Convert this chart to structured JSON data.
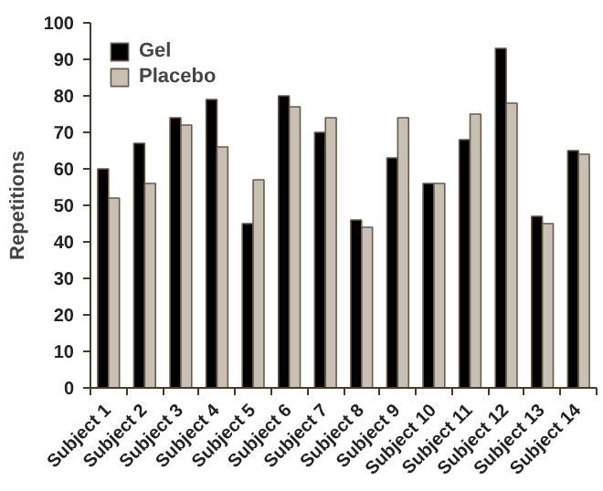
{
  "chart_data": {
    "type": "bar",
    "ylabel": "Repetitions",
    "categories": [
      "Subject 1",
      "Subject 2",
      "Subject 3",
      "Subject 4",
      "Subject 5",
      "Subject 6",
      "Subject 7",
      "Subject 8",
      "Subject 9",
      "Subject 10",
      "Subject 11",
      "Subject 12",
      "Subject 13",
      "Subject 14"
    ],
    "series": [
      {
        "name": "Gel",
        "color": "#000000",
        "values": [
          60,
          67,
          74,
          79,
          45,
          80,
          70,
          46,
          63,
          56,
          68,
          93,
          47,
          65
        ]
      },
      {
        "name": "Placebo",
        "color": "#c8bfb5",
        "values": [
          52,
          56,
          72,
          66,
          57,
          77,
          74,
          44,
          74,
          56,
          75,
          78,
          45,
          64
        ]
      }
    ],
    "ylim": [
      0,
      100
    ],
    "yticks": [
      0,
      10,
      20,
      30,
      40,
      50,
      60,
      70,
      80,
      90,
      100
    ],
    "grid": false,
    "legend": "top left"
  }
}
